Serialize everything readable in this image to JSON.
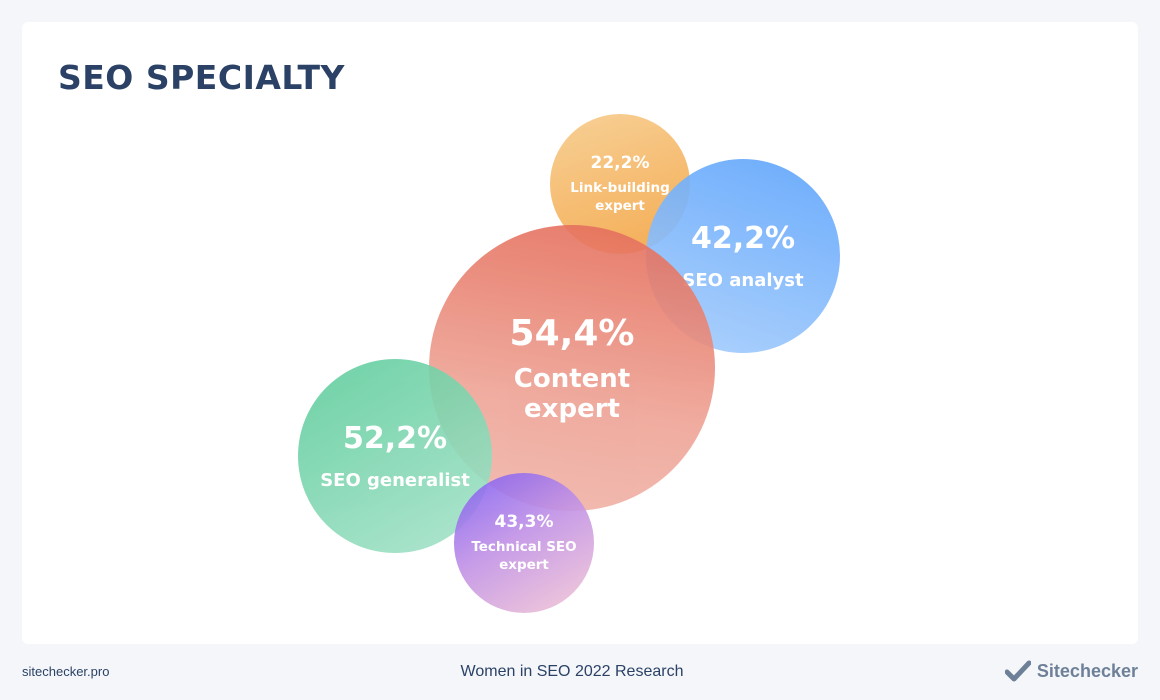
{
  "title": "SEO SPECIALTY",
  "chart_data": {
    "type": "bubble",
    "title": "SEO SPECIALTY",
    "series": [
      {
        "label": "Link-building expert",
        "value": 22.2,
        "display": "22,2%",
        "color": "#f4a646"
      },
      {
        "label": "SEO analyst",
        "value": 42.2,
        "display": "42,2%",
        "color": "#5fa5fb"
      },
      {
        "label": "Content expert",
        "value": 54.4,
        "display": "54,4%",
        "color": "#e46a57"
      },
      {
        "label": "SEO generalist",
        "value": 52.2,
        "display": "52,2%",
        "color": "#5dcc9b"
      },
      {
        "label": "Technical SEO expert",
        "value": 43.3,
        "display": "43,3%",
        "color": "#7c5cf2"
      }
    ]
  },
  "labels": {
    "link_1": "Link-building",
    "link_2": "expert",
    "analyst": "SEO analyst",
    "content_1": "Content",
    "content_2": "expert",
    "generalist": "SEO generalist",
    "technical_1": "Technical SEO",
    "technical_2": "expert"
  },
  "footer": {
    "site": "sitechecker.pro",
    "research": "Women in SEO 2022 Research",
    "brand": "Sitechecker"
  },
  "icons": {
    "brand": "checkmark-icon"
  }
}
